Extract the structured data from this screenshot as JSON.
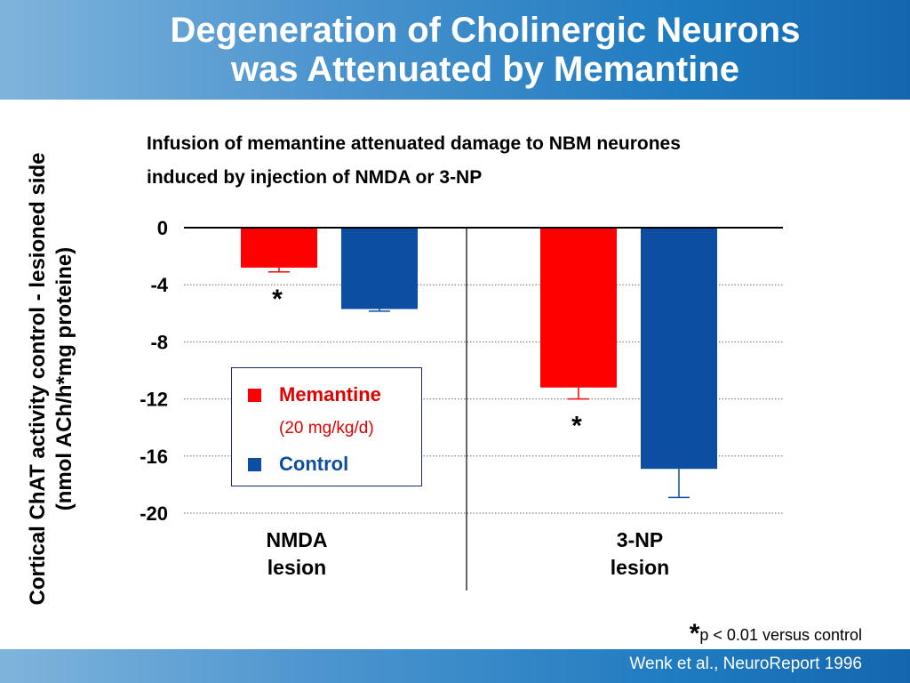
{
  "slide": {
    "title_line1": "Degeneration of Cholinergic Neurons",
    "title_line2": "was Attenuated by Memantine",
    "citation": "Wenk et al., NeuroReport 1996"
  },
  "chart_data": {
    "type": "bar",
    "title": "",
    "subtitle_lines": [
      "Infusion of memantine attenuated damage to NBM neurones",
      "induced by injection of NMDA or 3-NP"
    ],
    "ylabel_lines": [
      "Cortical ChAT activity control - lesioned side",
      "(nmol ACh/h*mg proteine)"
    ],
    "xlabel": "",
    "categories": [
      {
        "line1": "NMDA",
        "line2": "lesion"
      },
      {
        "line1": "3-NP",
        "line2": "lesion"
      }
    ],
    "series": [
      {
        "name": "Memantine",
        "name_sub": "(20 mg/kg/d)",
        "color": "#ff0000",
        "values": [
          -2.8,
          -11.2
        ],
        "errors": [
          0.3,
          0.8
        ]
      },
      {
        "name": "Control",
        "color": "#0b4ea2",
        "values": [
          -5.7,
          -16.9
        ],
        "errors": [
          0.15,
          2.0
        ]
      }
    ],
    "significance": {
      "marker": "*",
      "series": "Memantine",
      "categories": [
        0,
        1
      ]
    },
    "ylim": [
      -20,
      0
    ],
    "yticks": [
      0,
      -4,
      -8,
      -12,
      -16,
      -20
    ],
    "ytick_labels": [
      "0",
      "-4",
      "-8",
      "-12",
      "-16",
      "-20"
    ],
    "grid": "dotted-horizontal",
    "legend_position": "bottom-left",
    "footnote": {
      "marker": "*",
      "text": "p < 0.01 versus control"
    }
  }
}
